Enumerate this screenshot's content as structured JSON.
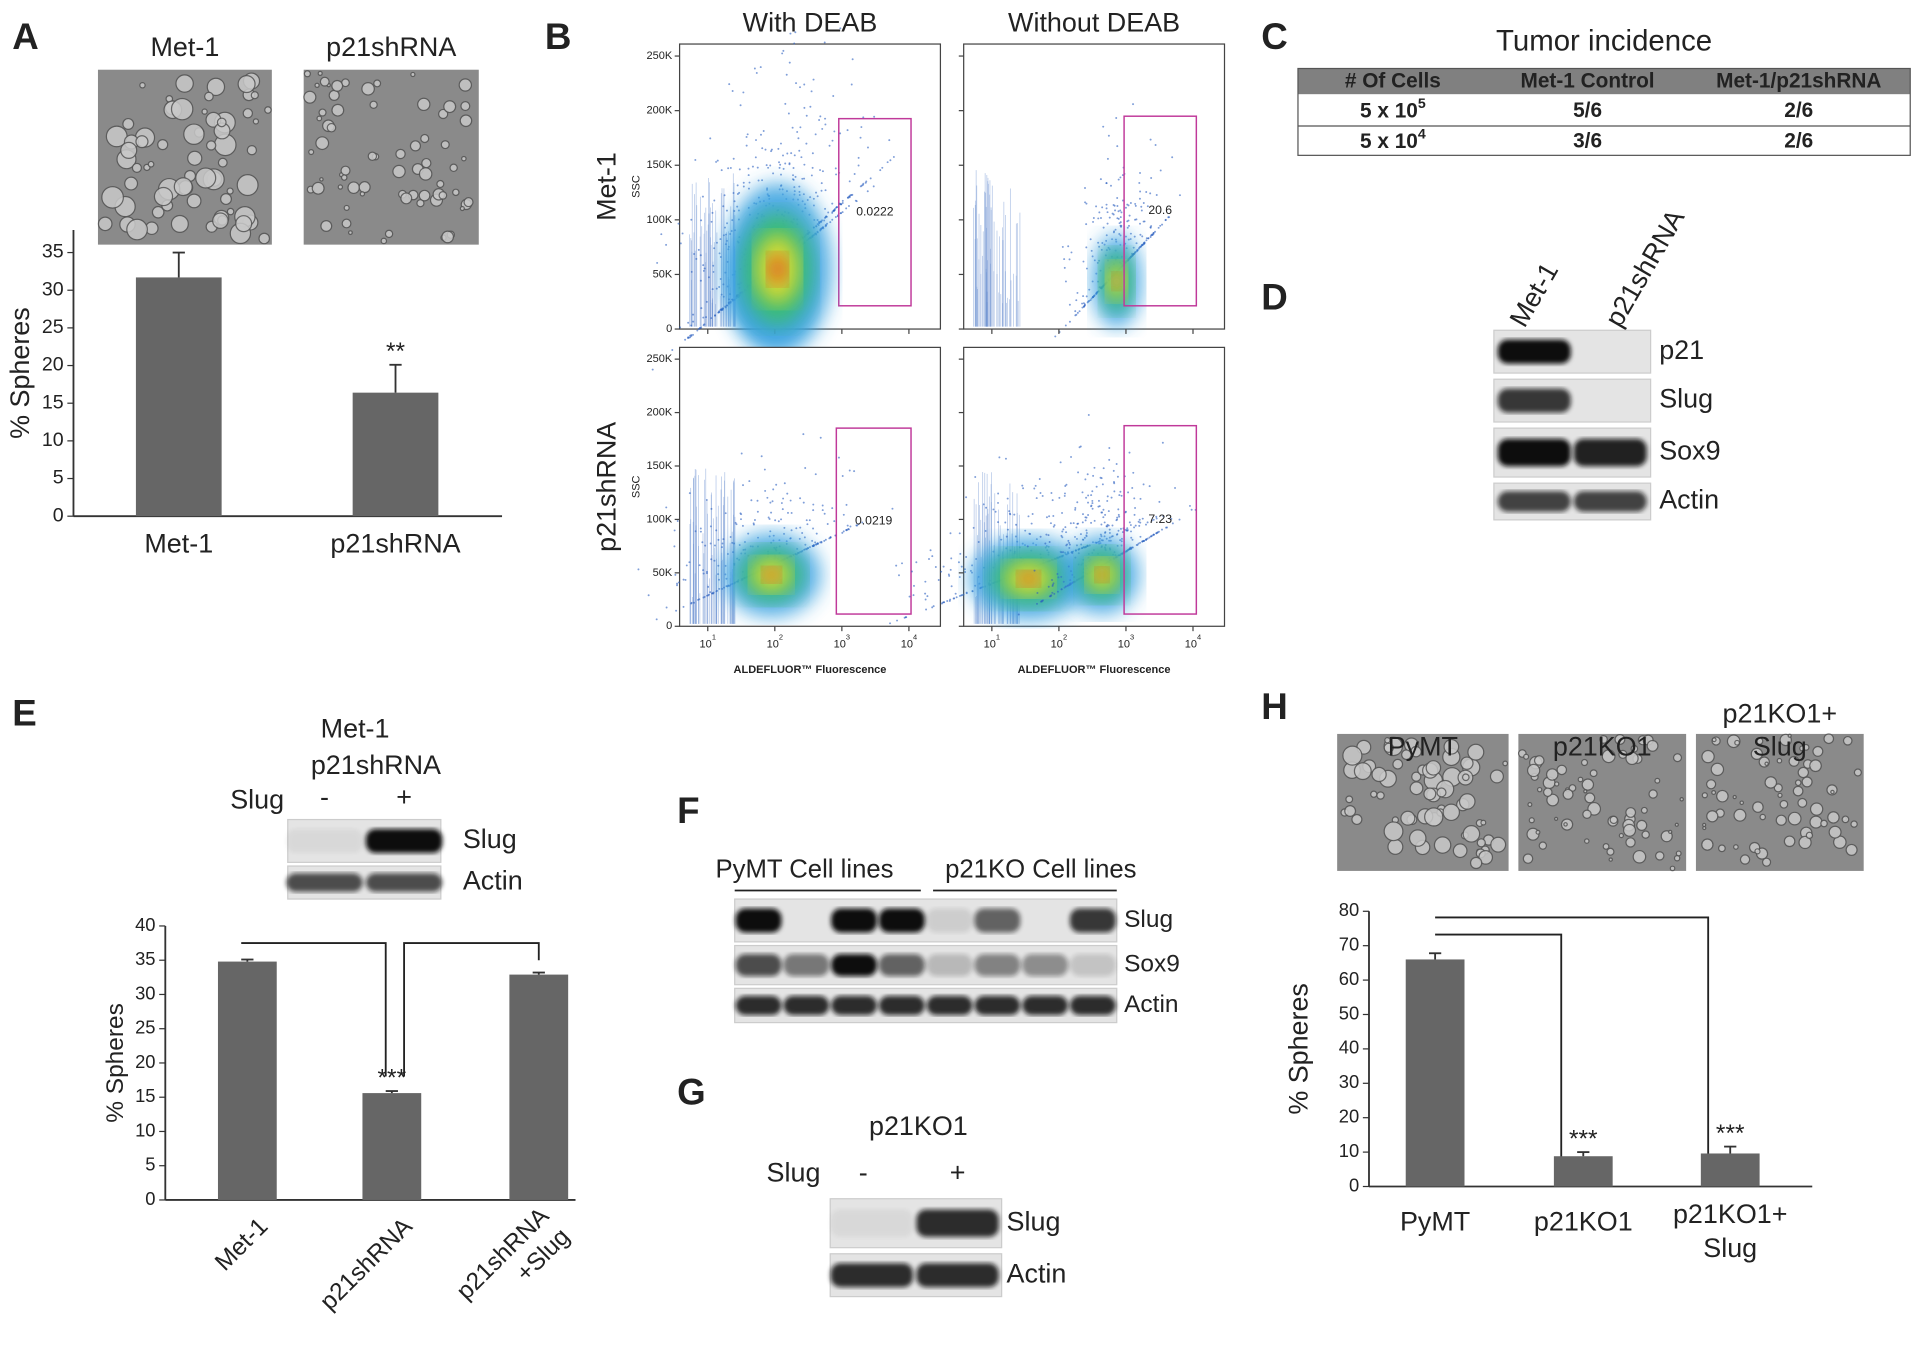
{
  "panel_labels": [
    "A",
    "B",
    "C",
    "D",
    "E",
    "F",
    "G",
    "H"
  ],
  "chart_data": [
    {
      "type": "bar",
      "image_labels": [
        "Met-1",
        "p21shRNA"
      ],
      "categories": [
        "Met-1",
        "p21shRNA"
      ],
      "values": [
        31.7,
        16.4
      ],
      "errors": [
        3.3,
        3.7
      ],
      "significance": [
        null,
        "**"
      ],
      "ylabel": "% Spheres",
      "ylim": [
        0,
        38
      ],
      "yticks": [
        0,
        5,
        10,
        15,
        20,
        25,
        30,
        35
      ],
      "color": "#666666"
    },
    {
      "type": "bar",
      "categories": [
        "Met-1",
        "p21shRNA",
        [
          "p21shRNA",
          "+Slug"
        ]
      ],
      "values": [
        34.8,
        15.6,
        32.9
      ],
      "errors": [
        0.3,
        0.3,
        0.3
      ],
      "significance": [
        null,
        "***",
        null
      ],
      "ylabel": "% Spheres",
      "ylim": [
        0,
        40
      ],
      "yticks": [
        0,
        5,
        10,
        15,
        20,
        25,
        30,
        35,
        40
      ],
      "color": "#666666"
    },
    {
      "type": "bar",
      "image_labels": [
        "PyMT",
        "p21KO1",
        [
          "p21KO1+",
          "Slug"
        ]
      ],
      "categories": [
        "PyMT",
        "p21KO1",
        [
          "p21KO1+",
          "Slug"
        ]
      ],
      "values": [
        66,
        8.8,
        9.6
      ],
      "errors": [
        1.8,
        1.2,
        2.0
      ],
      "significance": [
        null,
        "***",
        "***"
      ],
      "ylabel": "% Spheres",
      "ylim": [
        0,
        80
      ],
      "yticks": [
        0,
        10,
        20,
        30,
        40,
        50,
        60,
        70,
        80
      ],
      "color": "#666666"
    }
  ],
  "flow": {
    "columns": [
      "With DEAB",
      "Without DEAB"
    ],
    "rows": [
      "Met-1",
      "p21shRNA"
    ],
    "ylabel": "SSC",
    "xlabel": "ALDEFLUOR™ Fluorescence",
    "xlog": true,
    "xlim": [
      3.8,
      29500
    ],
    "xticks": [
      {
        "value": 10,
        "label": "10",
        "sup": "1"
      },
      {
        "value": 100,
        "label": "10",
        "sup": "2"
      },
      {
        "value": 1000,
        "label": "10",
        "sup": "3"
      },
      {
        "value": 10000,
        "label": "10",
        "sup": "4"
      }
    ],
    "ylim": [
      0,
      261000
    ],
    "yticks": [
      0,
      {
        "value": 50000,
        "label": "50K"
      },
      {
        "value": 100000,
        "label": "100K"
      },
      {
        "value": 150000,
        "label": "150K"
      },
      {
        "value": 200000,
        "label": "200K"
      },
      {
        "value": 250000,
        "label": "250K"
      }
    ],
    "gates": [
      [
        0.0222,
        20.6
      ],
      [
        0.0219,
        7.23
      ]
    ]
  },
  "table": {
    "title": "Tumor incidence",
    "header": [
      "# Of Cells",
      "Met-1 Control",
      "Met-1/p21shRNA"
    ],
    "rows": [
      [
        {
          "text": "5 x 10",
          "sup": "5"
        },
        "5/6",
        "2/6"
      ],
      [
        {
          "text": "5 x 10",
          "sup": "4"
        },
        "3/6",
        "2/6"
      ]
    ]
  },
  "blots": [
    {
      "lanes": [
        "Met-1",
        "p21shRNA"
      ],
      "bands": [
        "p21",
        "Slug",
        "Sox9",
        "Actin"
      ]
    },
    {
      "headers": [
        "Met-1",
        "p21shRNA"
      ],
      "row_label": "Slug",
      "lanes": [
        "-",
        "+"
      ],
      "bands": [
        "Slug",
        "Actin"
      ]
    },
    {
      "groups": [
        "PyMT Cell lines",
        "p21KO Cell lines"
      ],
      "bands": [
        "Slug",
        "Sox9",
        "Actin"
      ]
    },
    {
      "headers": [
        "p21KO1"
      ],
      "row_label": "Slug",
      "lanes": [
        "-",
        "+"
      ],
      "bands": [
        "Slug",
        "Actin"
      ]
    }
  ]
}
